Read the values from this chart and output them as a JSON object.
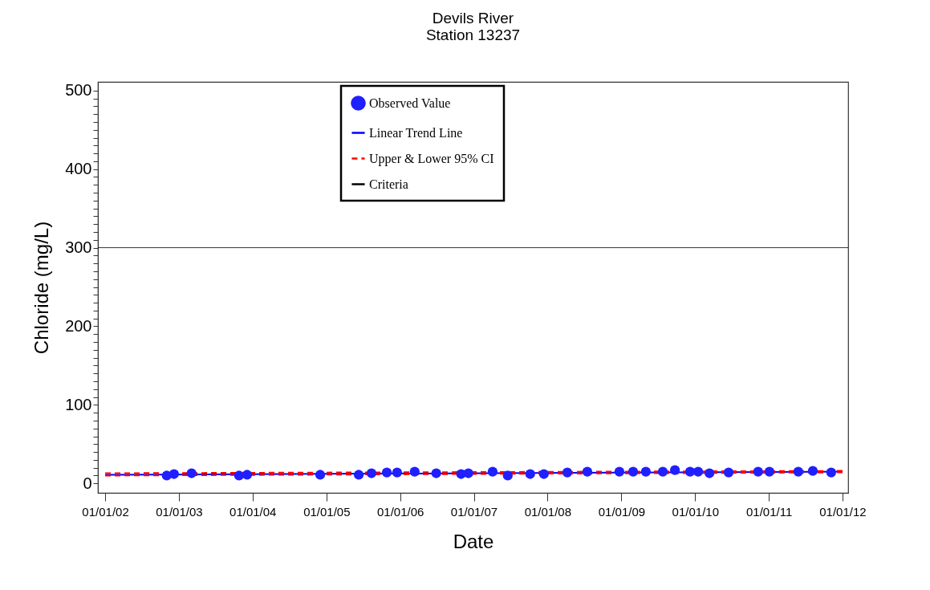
{
  "chart_data": {
    "type": "scatter",
    "title": "Devils River",
    "subtitle": "Station 13237",
    "xlabel": "Date",
    "ylabel": "Chloride (mg/L)",
    "x": [
      "2002-11-02",
      "2002-12-08",
      "2003-03-05",
      "2003-10-26",
      "2003-12-05",
      "2004-12-01",
      "2005-06-10",
      "2005-08-12",
      "2005-10-27",
      "2005-12-17",
      "2006-03-14",
      "2006-06-29",
      "2006-10-30",
      "2006-12-05",
      "2007-04-04",
      "2007-06-18",
      "2007-10-07",
      "2007-12-14",
      "2008-04-08",
      "2008-07-16",
      "2008-12-22",
      "2009-02-28",
      "2009-05-02",
      "2009-07-25",
      "2009-09-23",
      "2009-12-07",
      "2010-01-16",
      "2010-03-13",
      "2010-06-16",
      "2010-11-09",
      "2011-01-04",
      "2011-05-27",
      "2011-08-07",
      "2011-11-06"
    ],
    "series": [
      {
        "name": "Observed Value",
        "color": "#1f1fff",
        "marker": "circle",
        "values": [
          10,
          12,
          13,
          10,
          11,
          11,
          11,
          13,
          14,
          14,
          15,
          13,
          12,
          13,
          15,
          10,
          12,
          12,
          14,
          15,
          15,
          15,
          15,
          15,
          17,
          15,
          15,
          13,
          14,
          15,
          15,
          15,
          16,
          14
        ]
      },
      {
        "name": "Linear Trend Line",
        "type": "line",
        "color": "#0000ff",
        "line_style": "solid",
        "x": [
          "2002-01-01",
          "2012-01-01"
        ],
        "values": [
          11,
          15
        ]
      },
      {
        "name": "Upper & Lower 95% CI",
        "type": "line",
        "color": "#ff0000",
        "line_style": "dashed",
        "x": [
          "2002-01-01",
          "2012-01-01"
        ],
        "values": [
          13,
          16
        ]
      },
      {
        "type": "line",
        "color": "#ff0000",
        "line_style": "dashed",
        "x": [
          "2002-01-01",
          "2012-01-01"
        ],
        "values": [
          10,
          14
        ]
      }
    ],
    "ref_lines": [
      {
        "axis": "y",
        "value": 300,
        "label": "Criteria",
        "color": "#000000",
        "line_style": "solid"
      }
    ],
    "xlim": [
      "2001-11-26",
      "2012-01-29"
    ],
    "xticks": [
      {
        "value": "2002-01-01",
        "label": "01/01/02"
      },
      {
        "value": "2003-01-01",
        "label": "01/01/03"
      },
      {
        "value": "2004-01-01",
        "label": "01/01/04"
      },
      {
        "value": "2005-01-01",
        "label": "01/01/05"
      },
      {
        "value": "2006-01-01",
        "label": "01/01/06"
      },
      {
        "value": "2007-01-01",
        "label": "01/01/07"
      },
      {
        "value": "2008-01-01",
        "label": "01/01/08"
      },
      {
        "value": "2009-01-01",
        "label": "01/01/09"
      },
      {
        "value": "2010-01-01",
        "label": "01/01/10"
      },
      {
        "value": "2011-01-01",
        "label": "01/01/11"
      },
      {
        "value": "2012-01-01",
        "label": "01/01/12"
      }
    ],
    "ylim": [
      -12,
      511
    ],
    "yticks": [
      0,
      {
        "value": 10,
        "label": null
      },
      {
        "value": 20,
        "label": null
      },
      {
        "value": 30,
        "label": null
      },
      {
        "value": 40,
        "label": null
      },
      {
        "value": 50,
        "label": null
      },
      {
        "value": 60,
        "label": null
      },
      {
        "value": 70,
        "label": null
      },
      {
        "value": 80,
        "label": null
      },
      {
        "value": 90,
        "label": null
      },
      100,
      {
        "value": 110,
        "label": null
      },
      {
        "value": 120,
        "label": null
      },
      {
        "value": 130,
        "label": null
      },
      {
        "value": 140,
        "label": null
      },
      {
        "value": 150,
        "label": null
      },
      {
        "value": 160,
        "label": null
      },
      {
        "value": 170,
        "label": null
      },
      {
        "value": 180,
        "label": null
      },
      {
        "value": 190,
        "label": null
      },
      200,
      {
        "value": 210,
        "label": null
      },
      {
        "value": 220,
        "label": null
      },
      {
        "value": 230,
        "label": null
      },
      {
        "value": 240,
        "label": null
      },
      {
        "value": 250,
        "label": null
      },
      {
        "value": 260,
        "label": null
      },
      {
        "value": 270,
        "label": null
      },
      {
        "value": 280,
        "label": null
      },
      {
        "value": 290,
        "label": null
      },
      300,
      {
        "value": 310,
        "label": null
      },
      {
        "value": 320,
        "label": null
      },
      {
        "value": 330,
        "label": null
      },
      {
        "value": 340,
        "label": null
      },
      {
        "value": 350,
        "label": null
      },
      {
        "value": 360,
        "label": null
      },
      {
        "value": 370,
        "label": null
      },
      {
        "value": 380,
        "label": null
      },
      {
        "value": 390,
        "label": null
      },
      400,
      {
        "value": 410,
        "label": null
      },
      {
        "value": 420,
        "label": null
      },
      {
        "value": 430,
        "label": null
      },
      {
        "value": 440,
        "label": null
      },
      {
        "value": 450,
        "label": null
      },
      {
        "value": 460,
        "label": null
      },
      {
        "value": 470,
        "label": null
      },
      {
        "value": 480,
        "label": null
      },
      {
        "value": 490,
        "label": null
      },
      500
    ],
    "grid": false,
    "legend": "top"
  }
}
